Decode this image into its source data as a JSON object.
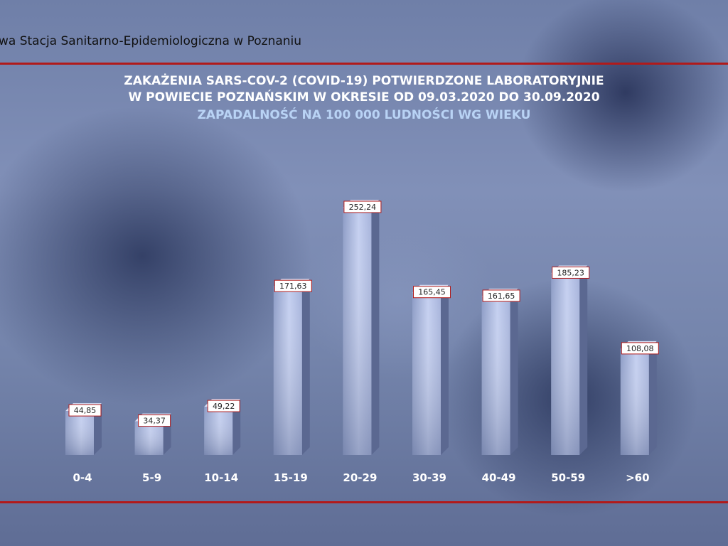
{
  "header": {
    "institution": "wa Stacja Sanitarno-Epidemiologiczna w Poznaniu",
    "accent_color": "#b11a1a"
  },
  "chart_data": {
    "type": "bar",
    "title": "ZAKAŻENIA SARS-COV-2 (COVID-19) POTWIERDZONE LABORATORYJNIE",
    "title_line2": "W POWIECIE POZNAŃSKIM W OKRESIE OD 09.03.2020 DO 30.09.2020",
    "subtitle": "ZAPADALNOŚĆ NA 100 000 LUDNOŚCI WG WIEKU",
    "categories": [
      "0-4",
      "5-9",
      "10-14",
      "15-19",
      "20-29",
      "30-39",
      "40-49",
      "50-59",
      ">60"
    ],
    "values": [
      44.85,
      34.37,
      49.22,
      171.63,
      252.24,
      165.45,
      161.65,
      185.23,
      108.08
    ],
    "value_labels": [
      "44,85",
      "34,37",
      "49,22",
      "171,63",
      "252,24",
      "165,45",
      "161,65",
      "185,23",
      "108,08"
    ],
    "xlabel": "",
    "ylabel": "",
    "ylim": [
      0,
      300
    ],
    "grid": false,
    "bar_color": "#b7c4e6",
    "label_border_color": "#b11a1a"
  }
}
